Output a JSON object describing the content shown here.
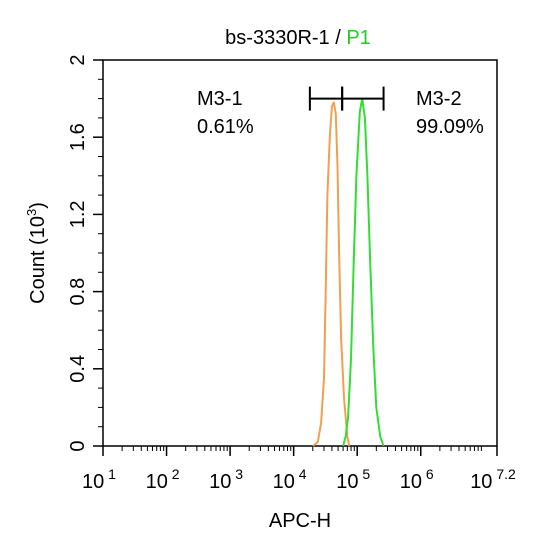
{
  "chart_data": {
    "type": "line",
    "title": {
      "prefix": "bs-3330R-1 / ",
      "gate": "P1",
      "gate_color": "#22cc22"
    },
    "xlabel": "APC-H",
    "ylabel": "Count",
    "ylabel_unit_base": "10",
    "ylabel_unit_exp": "3",
    "x_scale": "log",
    "xlim": [
      10,
      15848932
    ],
    "ylim": [
      0,
      2
    ],
    "x_ticks": [
      {
        "base": "10",
        "exp": "1",
        "value": 10
      },
      {
        "base": "10",
        "exp": "2",
        "value": 100
      },
      {
        "base": "10",
        "exp": "3",
        "value": 1000
      },
      {
        "base": "10",
        "exp": "4",
        "value": 10000
      },
      {
        "base": "10",
        "exp": "5",
        "value": 100000
      },
      {
        "base": "10",
        "exp": "6",
        "value": 1000000
      },
      {
        "base": "10",
        "exp": "7.2",
        "value": 15848932
      }
    ],
    "y_ticks": [
      "0",
      "0.4",
      "0.8",
      "1.2",
      "1.6",
      "2"
    ],
    "grid": false,
    "series": [
      {
        "color": "#f0a050",
        "points": [
          [
            20000,
            0
          ],
          [
            24000,
            0.02
          ],
          [
            27000,
            0.12
          ],
          [
            30000,
            0.35
          ],
          [
            32000,
            0.8
          ],
          [
            34000,
            1.3
          ],
          [
            37000,
            1.6
          ],
          [
            40000,
            1.76
          ],
          [
            43000,
            1.78
          ],
          [
            46000,
            1.72
          ],
          [
            49000,
            1.45
          ],
          [
            52000,
            1.0
          ],
          [
            56000,
            0.55
          ],
          [
            62000,
            0.25
          ],
          [
            70000,
            0.05
          ],
          [
            75000,
            0
          ]
        ]
      },
      {
        "color": "#33dd33",
        "points": [
          [
            60000,
            0
          ],
          [
            66000,
            0.05
          ],
          [
            72000,
            0.15
          ],
          [
            80000,
            0.45
          ],
          [
            88000,
            0.95
          ],
          [
            97000,
            1.4
          ],
          [
            110000,
            1.73
          ],
          [
            120000,
            1.8
          ],
          [
            132000,
            1.7
          ],
          [
            145000,
            1.4
          ],
          [
            160000,
            0.95
          ],
          [
            180000,
            0.5
          ],
          [
            200000,
            0.2
          ],
          [
            230000,
            0.05
          ],
          [
            260000,
            0
          ]
        ]
      }
    ],
    "gate_bars": [
      {
        "name": "M3-1",
        "percent": "0.61%",
        "x_from": 18000,
        "x_to": 58000,
        "y": 1.8
      },
      {
        "name": "M3-2",
        "percent": "99.09%",
        "x_from": 58000,
        "x_to": 260000,
        "y": 1.8
      }
    ]
  }
}
